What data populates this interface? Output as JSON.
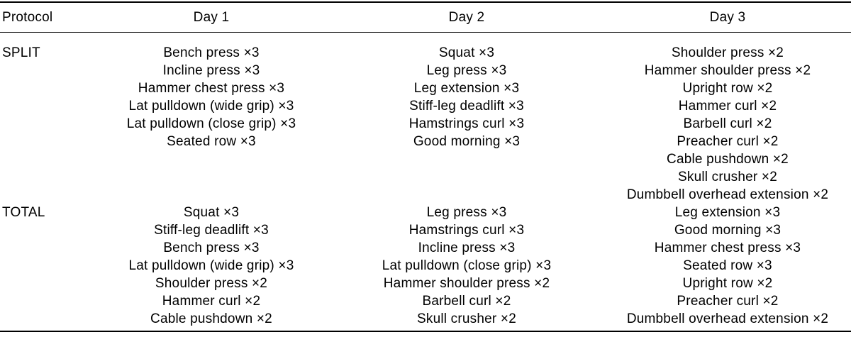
{
  "colors": {
    "background": "#ffffff",
    "text": "#000000",
    "rule": "#000000"
  },
  "table": {
    "header": {
      "protocol": "Protocol",
      "day1": "Day 1",
      "day2": "Day 2",
      "day3": "Day 3"
    },
    "sections": [
      {
        "protocol": "SPLIT",
        "day1": [
          "Bench press ×3",
          "Incline press ×3",
          "Hammer chest press ×3",
          "Lat pulldown (wide grip) ×3",
          "Lat pulldown (close grip) ×3",
          "Seated row ×3"
        ],
        "day2": [
          "Squat ×3",
          "Leg press ×3",
          "Leg extension ×3",
          "Stiff-leg deadlift ×3",
          "Hamstrings curl ×3",
          "Good morning ×3"
        ],
        "day3": [
          "Shoulder press ×2",
          "Hammer shoulder press ×2",
          "Upright row ×2",
          "Hammer curl ×2",
          "Barbell curl ×2",
          "Preacher curl ×2",
          "Cable pushdown ×2",
          "Skull crusher ×2",
          "Dumbbell overhead extension ×2"
        ]
      },
      {
        "protocol": "TOTAL",
        "day1": [
          "Squat ×3",
          "Stiff-leg deadlift ×3",
          "Bench press ×3",
          "Lat pulldown (wide grip) ×3",
          "Shoulder press ×2",
          "Hammer curl ×2",
          "Cable pushdown ×2"
        ],
        "day2": [
          "Leg press ×3",
          "Hamstrings curl ×3",
          "Incline press ×3",
          "Lat pulldown (close grip) ×3",
          "Hammer shoulder press ×2",
          "Barbell curl ×2",
          "Skull crusher ×2"
        ],
        "day3": [
          "Leg extension ×3",
          "Good morning ×3",
          "Hammer chest press ×3",
          "Seated row ×3",
          "Upright row ×2",
          "Preacher curl ×2",
          "Dumbbell overhead extension ×2"
        ]
      }
    ]
  }
}
